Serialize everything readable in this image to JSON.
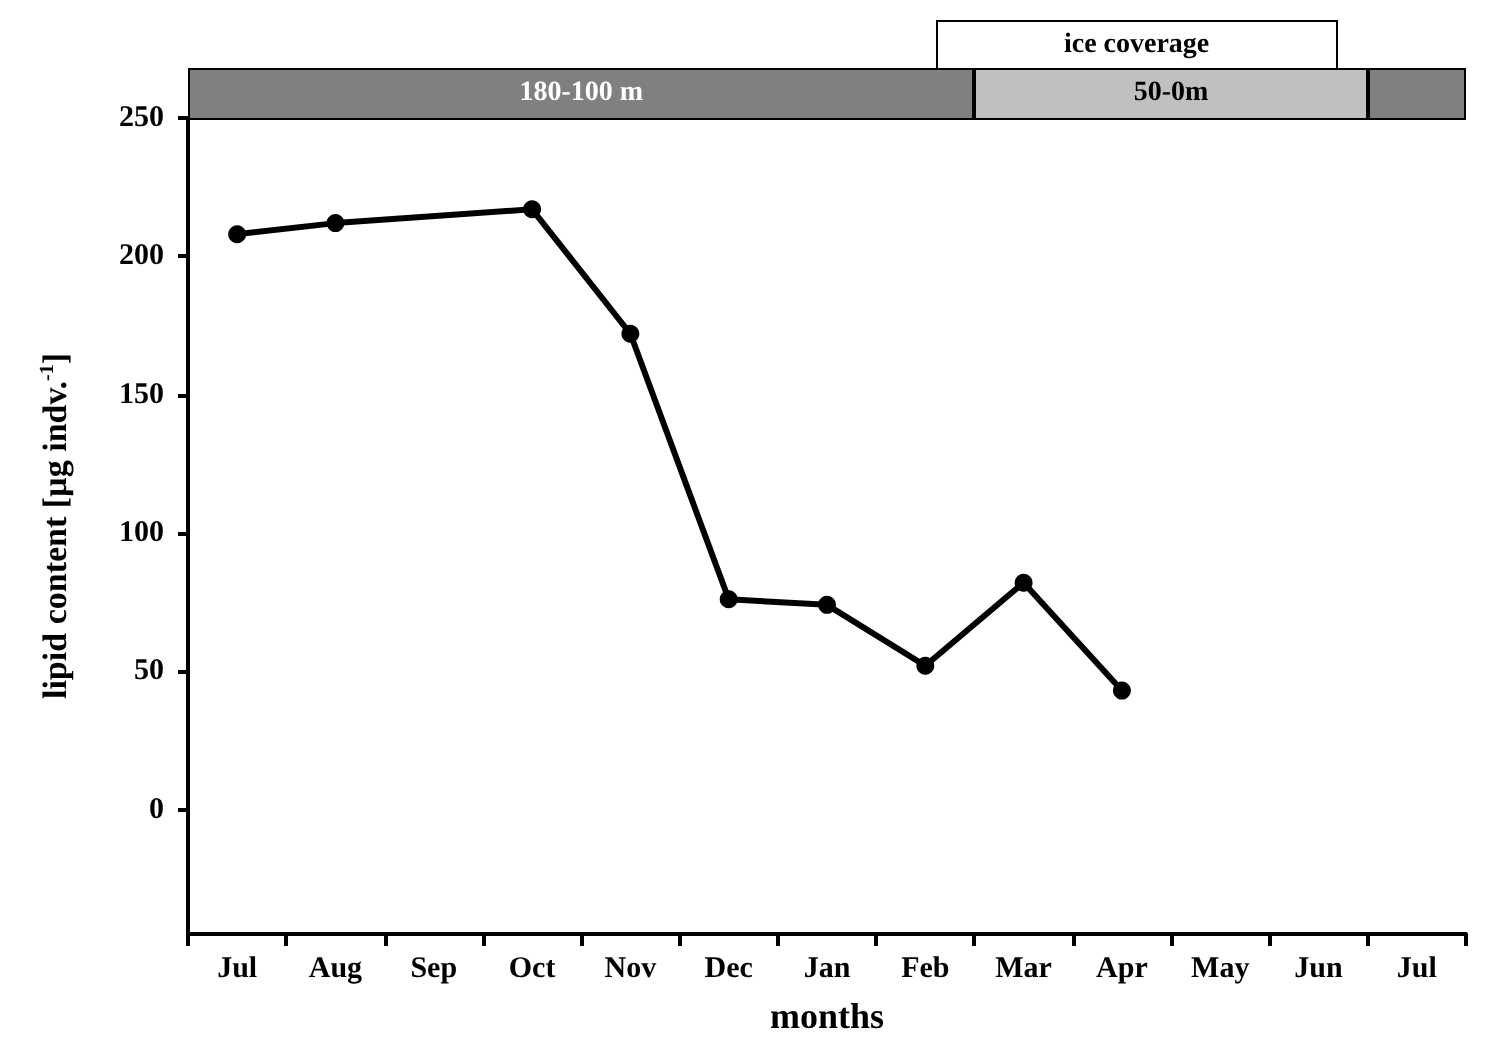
{
  "chart_data": {
    "type": "line",
    "xlabel": "months",
    "ylabel": "lipid content [µg indv.$^{-1}$]",
    "categories": [
      "Jul",
      "Aug",
      "Sep",
      "Oct",
      "Nov",
      "Dec",
      "Jan",
      "Feb",
      "Mar",
      "Apr",
      "May",
      "Jun",
      "Jul"
    ],
    "series": [
      {
        "color": "#000000",
        "values": [
          208,
          212,
          null,
          217,
          172,
          76,
          74,
          52,
          82,
          43,
          null,
          null,
          null
        ]
      }
    ],
    "ylim": [
      -45,
      250
    ],
    "yticks": [
      0,
      50,
      100,
      150,
      200,
      250
    ],
    "marker": "circle",
    "line_style": "solid",
    "grid": false,
    "annotations": [
      "180-100 m",
      "50-0m",
      "ice coverage"
    ]
  }
}
